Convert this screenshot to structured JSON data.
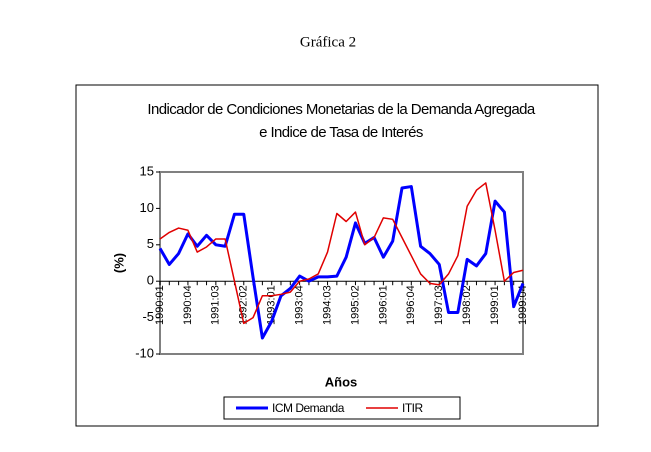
{
  "header": {
    "title": "Gráfica 2"
  },
  "chart_data": {
    "type": "line",
    "title": "Indicador de Condiciones Monetarias de la Demanda Agregada",
    "subtitle": "e Indice de Tasa de Interés",
    "y_label": "(%)",
    "x_label": "Años",
    "categories": [
      "1990:01",
      null,
      null,
      "1990:04",
      null,
      null,
      "1991:03",
      null,
      null,
      "1992:02",
      null,
      null,
      "1993:01",
      null,
      null,
      "1993:04",
      null,
      null,
      "1994:03",
      null,
      null,
      "1995:02",
      null,
      null,
      "1996:01",
      null,
      null,
      "1996:04",
      null,
      null,
      "1997:03",
      null,
      null,
      "1998:02",
      null,
      null,
      "1999:01",
      null,
      null,
      "1999:04"
    ],
    "series": [
      {
        "name": "ICM Demanda",
        "color": "#0000ff",
        "values": [
          4.5,
          2.3,
          3.8,
          6.5,
          4.8,
          6.3,
          5,
          4.8,
          9.2,
          9.2,
          0.5,
          -7.8,
          -5.5,
          -2,
          -1,
          0.7,
          0,
          0.6,
          0.6,
          0.7,
          3.3,
          8,
          5.2,
          6,
          3.3,
          5.5,
          12.8,
          13,
          4.8,
          3.8,
          2.3,
          -4.3,
          -4.3,
          3,
          2.1,
          3.8,
          11,
          9.5,
          -3.5,
          -0.3
        ]
      },
      {
        "name": "ITIR",
        "color": "#e00000",
        "values": [
          5.8,
          6.7,
          7.3,
          7,
          4,
          4.7,
          5.8,
          5.8,
          0,
          -5.8,
          -5,
          -2,
          -2,
          -1.8,
          -1.5,
          0,
          0.3,
          1,
          4,
          9.3,
          8.2,
          9.5,
          5,
          6,
          8.7,
          8.5,
          6,
          3.5,
          1,
          -0.3,
          -0.5,
          1,
          3.5,
          10.3,
          12.5,
          13.5,
          7,
          0,
          1.2,
          1.5
        ]
      }
    ],
    "ylim": [
      -10,
      15
    ],
    "yticks": [
      -10,
      -5,
      0,
      5,
      10,
      15
    ],
    "legend": "bottom",
    "grid": false
  }
}
